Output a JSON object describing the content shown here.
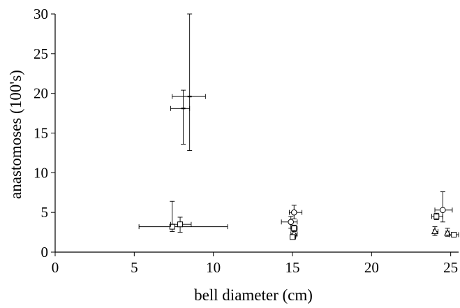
{
  "chart_data": {
    "type": "scatter",
    "title": "",
    "xlabel": "bell diameter (cm)",
    "ylabel": "anastomoses (100's)",
    "xlim": [
      0,
      25.5
    ],
    "ylim": [
      0,
      30
    ],
    "xticks": [
      "0",
      "5",
      "10",
      "15",
      "20",
      "25"
    ],
    "yticks": [
      "0",
      "5",
      "10",
      "15",
      "20",
      "25",
      "30"
    ],
    "xtick_values": [
      0,
      5,
      10,
      15,
      20,
      25
    ],
    "ytick_values": [
      0,
      5,
      10,
      15,
      20,
      25,
      30
    ],
    "grid": false,
    "legend": "none",
    "points": [
      {
        "marker": "dash",
        "x": 8.5,
        "y": 19.6,
        "xerr": [
          7.4,
          9.5
        ],
        "yerr": [
          12.8,
          30.0
        ]
      },
      {
        "marker": "dash",
        "x": 8.1,
        "y": 18.1,
        "xerr": [
          7.3,
          8.5
        ],
        "yerr": [
          13.6,
          20.4
        ]
      },
      {
        "marker": "square",
        "x": 7.4,
        "y": 3.2,
        "xerr": [
          5.3,
          10.9
        ],
        "yerr": [
          2.6,
          6.4
        ]
      },
      {
        "marker": "square",
        "x": 7.9,
        "y": 3.5,
        "xerr": [
          7.3,
          8.6
        ],
        "yerr": [
          2.5,
          4.4
        ]
      },
      {
        "marker": "circle",
        "x": 15.1,
        "y": 5.0,
        "xerr": [
          14.8,
          15.6
        ],
        "yerr": [
          4.2,
          5.9
        ]
      },
      {
        "marker": "circle",
        "x": 14.9,
        "y": 3.8,
        "xerr": [
          14.3,
          15.3
        ],
        "yerr": [
          3.0,
          4.5
        ]
      },
      {
        "marker": "square",
        "x": 15.1,
        "y": 3.0,
        "xerr": [
          14.9,
          15.3
        ],
        "yerr": [
          2.6,
          3.4
        ]
      },
      {
        "marker": "triangle",
        "x": 15.1,
        "y": 2.3,
        "xerr": [
          14.9,
          15.3
        ],
        "yerr": [
          1.9,
          2.7
        ]
      },
      {
        "marker": "square",
        "x": 15.0,
        "y": 1.9,
        "xerr": [
          14.9,
          15.2
        ],
        "yerr": [
          1.7,
          2.1
        ]
      },
      {
        "marker": "circle",
        "x": 24.5,
        "y": 5.3,
        "xerr": [
          24.0,
          25.1
        ],
        "yerr": [
          3.8,
          7.6
        ]
      },
      {
        "marker": "square",
        "x": 24.1,
        "y": 4.5,
        "xerr": [
          23.8,
          24.5
        ],
        "yerr": [
          4.1,
          4.9
        ]
      },
      {
        "marker": "triangle",
        "x": 24.0,
        "y": 2.6,
        "xerr": [
          23.9,
          24.2
        ],
        "yerr": [
          2.1,
          3.2
        ]
      },
      {
        "marker": "triangle",
        "x": 24.8,
        "y": 2.4,
        "xerr": [
          24.7,
          24.9
        ],
        "yerr": [
          2.0,
          3.0
        ]
      },
      {
        "marker": "square",
        "x": 25.2,
        "y": 2.2,
        "xerr": [
          24.9,
          25.5
        ],
        "yerr": [
          2.0,
          2.4
        ]
      }
    ]
  }
}
